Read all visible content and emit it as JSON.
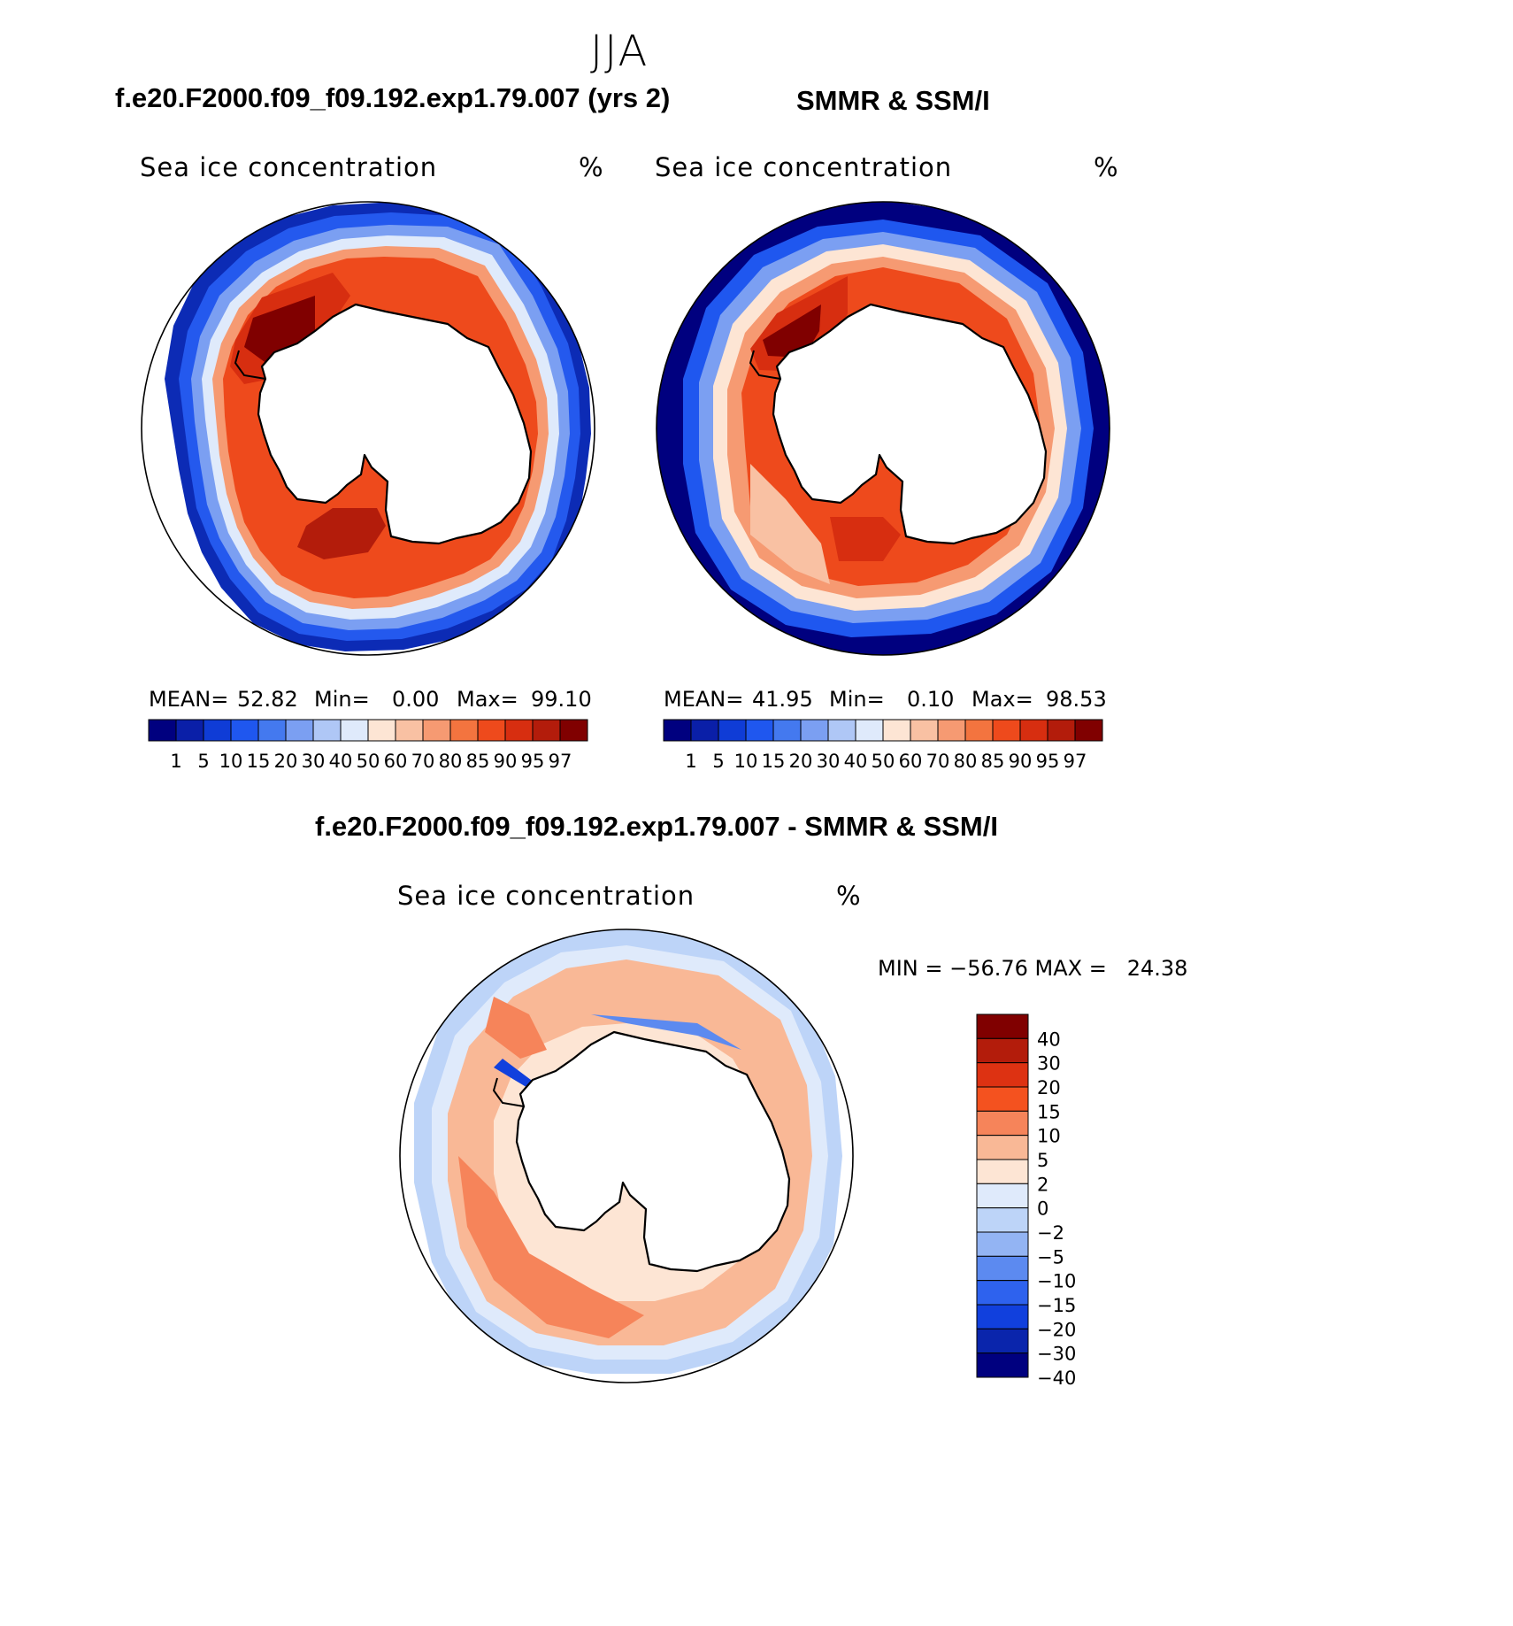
{
  "figure": {
    "season": "JJA",
    "panels": [
      {
        "title": "f.e20.F2000.f09_f09.192.exp1.79.007 (yrs 2)",
        "variable_label": "Sea ice concentration",
        "units_label": "%",
        "stats": {
          "mean_label": "MEAN=",
          "mean": "52.82",
          "min_label": "Min=",
          "min": "0.00",
          "max_label": "Max=",
          "max": "99.10"
        }
      },
      {
        "title": "SMMR & SSM/I",
        "variable_label": "Sea ice concentration",
        "units_label": "%",
        "stats": {
          "mean_label": "MEAN=",
          "mean": "41.95",
          "min_label": "Min=",
          "min": "0.10",
          "max_label": "Max=",
          "max": "98.53"
        }
      },
      {
        "title": "f.e20.F2000.f09_f09.192.exp1.79.007 - SMMR & SSM/I",
        "variable_label": "Sea ice concentration",
        "units_label": "%",
        "stats": {
          "text": "MIN = −56.76 MAX =   24.38"
        }
      }
    ],
    "conc_colorbar": {
      "labels": [
        "1",
        "5",
        "10",
        "15",
        "20",
        "30",
        "40",
        "50",
        "60",
        "70",
        "80",
        "85",
        "90",
        "95",
        "97"
      ],
      "colors": [
        "#00007f",
        "#0a1fa8",
        "#0f3cd6",
        "#1f57ef",
        "#4479ef",
        "#7b9ff2",
        "#afc7f6",
        "#dfeafb",
        "#fde5d4",
        "#f9c1a3",
        "#f69a72",
        "#f3743f",
        "#ee4a1c",
        "#d72e10",
        "#b31c0b",
        "#800000"
      ]
    },
    "diff_colorbar": {
      "labels": [
        "40",
        "30",
        "20",
        "15",
        "10",
        "5",
        "2",
        "0",
        "−2",
        "−5",
        "−10",
        "−15",
        "−20",
        "−30",
        "−40"
      ],
      "colors": [
        "#800000",
        "#b31c0b",
        "#dd3212",
        "#f4521f",
        "#f6845a",
        "#f9b896",
        "#fde5d4",
        "#dfeafb",
        "#bdd4f8",
        "#93b4f3",
        "#5c8af0",
        "#2e62ee",
        "#1140dd",
        "#0a25ac",
        "#00007f"
      ]
    }
  }
}
